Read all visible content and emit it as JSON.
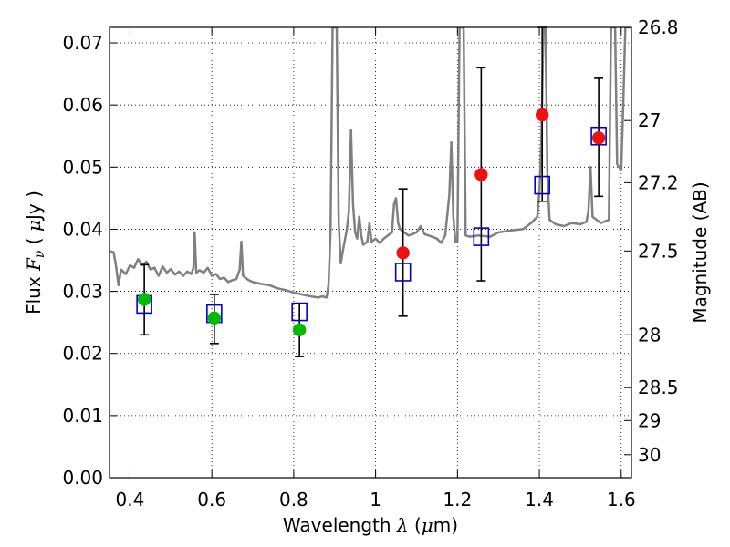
{
  "chart_data": {
    "type": "scatter",
    "xlabel": "Wavelength  λ (μm)",
    "ylabel": "Flux  Fν  ( μJy )",
    "ylabel_right": "Magnitude (AB)",
    "xlim": [
      0.35,
      1.625
    ],
    "ylim": [
      0.0,
      0.0725
    ],
    "grid": true,
    "x_ticks": [
      0.4,
      0.6,
      0.8,
      1.0,
      1.2,
      1.4,
      1.6
    ],
    "x_tick_labels": [
      "0.4",
      "0.6",
      "0.8",
      "1",
      "1.2",
      "1.4",
      "1.6"
    ],
    "y_ticks": [
      0.0,
      0.01,
      0.02,
      0.03,
      0.04,
      0.05,
      0.06,
      0.07
    ],
    "y_tick_labels": [
      "0.00",
      "0.01",
      "0.02",
      "0.03",
      "0.04",
      "0.05",
      "0.06",
      "0.07"
    ],
    "right_ticks": [
      {
        "flux": 0.0725,
        "label": "26.8"
      },
      {
        "flux": 0.0575,
        "label": "27"
      },
      {
        "flux": 0.0475,
        "label": "27.2"
      },
      {
        "flux": 0.0365,
        "label": "27.5"
      },
      {
        "flux": 0.023,
        "label": "28"
      },
      {
        "flux": 0.0145,
        "label": "28.5"
      },
      {
        "flux": 0.0092,
        "label": "29"
      },
      {
        "flux": 0.0037,
        "label": "30"
      }
    ],
    "series": [
      {
        "marker": "circle",
        "color": "#00bb00",
        "points": [
          {
            "x": 0.435,
            "y": 0.0287,
            "err_lo": 0.023,
            "err_hi": 0.0343
          },
          {
            "x": 0.606,
            "y": 0.0257,
            "err_lo": 0.0216,
            "err_hi": 0.0295
          },
          {
            "x": 0.814,
            "y": 0.0238,
            "err_lo": 0.0195,
            "err_hi": 0.028
          }
        ]
      },
      {
        "marker": "circle",
        "color": "#ee1111",
        "points": [
          {
            "x": 1.067,
            "y": 0.0362,
            "err_lo": 0.026,
            "err_hi": 0.0465
          },
          {
            "x": 1.258,
            "y": 0.0488,
            "err_lo": 0.0317,
            "err_hi": 0.066
          },
          {
            "x": 1.407,
            "y": 0.0584,
            "err_lo": 0.0445,
            "err_hi": 0.0725
          },
          {
            "x": 1.545,
            "y": 0.0547,
            "err_lo": 0.0453,
            "err_hi": 0.0643
          }
        ]
      },
      {
        "marker": "open-square",
        "color": "#0000cc",
        "points": [
          {
            "x": 0.435,
            "y": 0.0279
          },
          {
            "x": 0.606,
            "y": 0.0264
          },
          {
            "x": 0.814,
            "y": 0.0267
          },
          {
            "x": 1.067,
            "y": 0.0331
          },
          {
            "x": 1.258,
            "y": 0.0388
          },
          {
            "x": 1.407,
            "y": 0.0471
          },
          {
            "x": 1.545,
            "y": 0.055
          }
        ]
      },
      {
        "marker": "line",
        "color": "#808080",
        "points": [
          [
            0.35,
            0.0365
          ],
          [
            0.36,
            0.0363
          ],
          [
            0.365,
            0.0345
          ],
          [
            0.372,
            0.031
          ],
          [
            0.378,
            0.0335
          ],
          [
            0.39,
            0.0328
          ],
          [
            0.4,
            0.0342
          ],
          [
            0.41,
            0.0338
          ],
          [
            0.42,
            0.0352
          ],
          [
            0.43,
            0.0342
          ],
          [
            0.44,
            0.0348
          ],
          [
            0.45,
            0.0335
          ],
          [
            0.46,
            0.0338
          ],
          [
            0.47,
            0.0325
          ],
          [
            0.48,
            0.034
          ],
          [
            0.49,
            0.033
          ],
          [
            0.5,
            0.0336
          ],
          [
            0.51,
            0.0327
          ],
          [
            0.52,
            0.0332
          ],
          [
            0.53,
            0.0325
          ],
          [
            0.54,
            0.0332
          ],
          [
            0.55,
            0.0328
          ],
          [
            0.555,
            0.0338
          ],
          [
            0.558,
            0.0395
          ],
          [
            0.562,
            0.033
          ],
          [
            0.57,
            0.0334
          ],
          [
            0.58,
            0.033
          ],
          [
            0.59,
            0.0338
          ],
          [
            0.6,
            0.0325
          ],
          [
            0.61,
            0.0328
          ],
          [
            0.62,
            0.032
          ],
          [
            0.63,
            0.0322
          ],
          [
            0.64,
            0.0315
          ],
          [
            0.65,
            0.0318
          ],
          [
            0.66,
            0.032
          ],
          [
            0.668,
            0.0335
          ],
          [
            0.672,
            0.038
          ],
          [
            0.676,
            0.0325
          ],
          [
            0.69,
            0.0318
          ],
          [
            0.7,
            0.0315
          ],
          [
            0.72,
            0.0312
          ],
          [
            0.74,
            0.031
          ],
          [
            0.76,
            0.0305
          ],
          [
            0.78,
            0.0302
          ],
          [
            0.79,
            0.03
          ],
          [
            0.8,
            0.0298
          ],
          [
            0.82,
            0.0295
          ],
          [
            0.84,
            0.0292
          ],
          [
            0.86,
            0.029
          ],
          [
            0.87,
            0.0292
          ],
          [
            0.88,
            0.029
          ],
          [
            0.885,
            0.031
          ],
          [
            0.89,
            0.04
          ],
          [
            0.895,
            0.0725
          ],
          [
            0.905,
            0.0725
          ],
          [
            0.91,
            0.041
          ],
          [
            0.915,
            0.0345
          ],
          [
            0.92,
            0.0365
          ],
          [
            0.93,
            0.04
          ],
          [
            0.935,
            0.043
          ],
          [
            0.94,
            0.056
          ],
          [
            0.945,
            0.044
          ],
          [
            0.95,
            0.0395
          ],
          [
            0.955,
            0.0385
          ],
          [
            0.96,
            0.042
          ],
          [
            0.965,
            0.039
          ],
          [
            0.97,
            0.0375
          ],
          [
            0.98,
            0.038
          ],
          [
            0.985,
            0.041
          ],
          [
            0.99,
            0.038
          ],
          [
            1.0,
            0.0385
          ],
          [
            1.01,
            0.0378
          ],
          [
            1.02,
            0.0385
          ],
          [
            1.03,
            0.039
          ],
          [
            1.04,
            0.0395
          ],
          [
            1.045,
            0.044
          ],
          [
            1.05,
            0.045
          ],
          [
            1.055,
            0.041
          ],
          [
            1.06,
            0.04
          ],
          [
            1.07,
            0.0395
          ],
          [
            1.08,
            0.039
          ],
          [
            1.09,
            0.0392
          ],
          [
            1.1,
            0.0395
          ],
          [
            1.11,
            0.0405
          ],
          [
            1.12,
            0.0392
          ],
          [
            1.13,
            0.039
          ],
          [
            1.15,
            0.0385
          ],
          [
            1.16,
            0.0378
          ],
          [
            1.17,
            0.039
          ],
          [
            1.18,
            0.0455
          ],
          [
            1.185,
            0.054
          ],
          [
            1.19,
            0.042
          ],
          [
            1.195,
            0.038
          ],
          [
            1.2,
            0.038
          ],
          [
            1.205,
            0.0725
          ],
          [
            1.215,
            0.0725
          ],
          [
            1.22,
            0.039
          ],
          [
            1.23,
            0.0388
          ],
          [
            1.25,
            0.039
          ],
          [
            1.28,
            0.0388
          ],
          [
            1.3,
            0.0395
          ],
          [
            1.33,
            0.0398
          ],
          [
            1.36,
            0.04
          ],
          [
            1.38,
            0.041
          ],
          [
            1.395,
            0.042
          ],
          [
            1.4,
            0.046
          ],
          [
            1.405,
            0.054
          ],
          [
            1.41,
            0.0725
          ],
          [
            1.415,
            0.0725
          ],
          [
            1.42,
            0.048
          ],
          [
            1.425,
            0.0415
          ],
          [
            1.44,
            0.0408
          ],
          [
            1.46,
            0.0405
          ],
          [
            1.48,
            0.041
          ],
          [
            1.5,
            0.0408
          ],
          [
            1.515,
            0.0412
          ],
          [
            1.52,
            0.043
          ],
          [
            1.525,
            0.05
          ],
          [
            1.53,
            0.042
          ],
          [
            1.55,
            0.041
          ],
          [
            1.57,
            0.0415
          ],
          [
            1.575,
            0.0725
          ],
          [
            1.585,
            0.0725
          ],
          [
            1.59,
            0.0505
          ],
          [
            1.6,
            0.0495
          ],
          [
            1.605,
            0.06
          ],
          [
            1.61,
            0.0725
          ],
          [
            1.625,
            0.0725
          ]
        ]
      }
    ]
  }
}
